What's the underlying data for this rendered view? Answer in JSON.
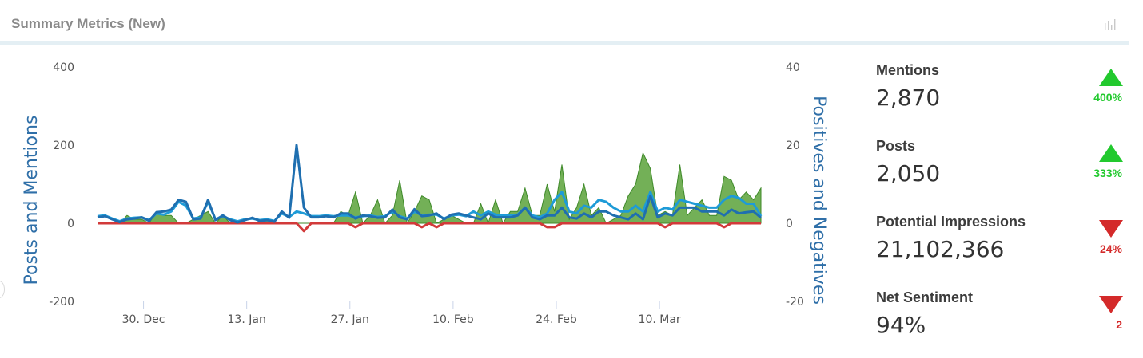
{
  "widget": {
    "title": "Summary Metrics (New)",
    "icon": "bar-chart-icon"
  },
  "metrics": [
    {
      "label": "Mentions",
      "value": "2,870",
      "change": "400%",
      "direction": "up"
    },
    {
      "label": "Posts",
      "value": "2,050",
      "change": "333%",
      "direction": "up"
    },
    {
      "label": "Potential Impressions",
      "value": "21,102,366",
      "change": "24%",
      "direction": "down"
    },
    {
      "label": "Net Sentiment",
      "value": "94%",
      "change": "2",
      "direction": "down"
    }
  ],
  "colors": {
    "mentions": "#1f6fb0",
    "posts": "#1e9bd7",
    "positives": "#5aa23a",
    "negatives": "#d23a3a",
    "axis_title": "#2f6fa8",
    "up": "#22c92e",
    "down": "#d42a2a"
  },
  "chart_data": {
    "type": "line",
    "ylabel": "Posts and Mentions",
    "y2label": "Positives and Negatives",
    "ylim": [
      -200,
      400
    ],
    "y2lim": [
      -20,
      40
    ],
    "yticks": [
      -200,
      0,
      200,
      400
    ],
    "y2ticks": [
      -20,
      0,
      20,
      40
    ],
    "xtick_labels": [
      "30. Dec",
      "13. Jan",
      "27. Jan",
      "10. Feb",
      "24. Feb",
      "10. Mar"
    ],
    "xtick_positions": [
      7,
      21,
      35,
      49,
      63,
      77
    ],
    "num_points": 91,
    "grid": false,
    "series": [
      {
        "axis": "left",
        "values": [
          15,
          18,
          10,
          3,
          10,
          12,
          15,
          6,
          28,
          30,
          35,
          60,
          55,
          10,
          12,
          60,
          8,
          20,
          8,
          2,
          8,
          14,
          6,
          8,
          4,
          30,
          14,
          200,
          40,
          15,
          15,
          18,
          15,
          25,
          25,
          12,
          20,
          18,
          14,
          15,
          35,
          15,
          10,
          36,
          18,
          20,
          25,
          10,
          22,
          25,
          20,
          15,
          10,
          25,
          15,
          15,
          15,
          20,
          40,
          15,
          10,
          20,
          20,
          40,
          15,
          12,
          25,
          15,
          30,
          30,
          20,
          15,
          10,
          25,
          10,
          70,
          15,
          25,
          20,
          40,
          40,
          40,
          30,
          30,
          30,
          20,
          35,
          25,
          28,
          30,
          14
        ]
      },
      {
        "axis": "left",
        "values": [
          18,
          20,
          12,
          5,
          12,
          14,
          15,
          8,
          25,
          22,
          30,
          55,
          45,
          12,
          15,
          55,
          10,
          18,
          10,
          5,
          10,
          12,
          8,
          10,
          6,
          25,
          16,
          30,
          25,
          18,
          18,
          20,
          18,
          20,
          20,
          15,
          18,
          20,
          16,
          18,
          30,
          18,
          12,
          30,
          20,
          22,
          22,
          12,
          20,
          22,
          18,
          30,
          20,
          30,
          22,
          20,
          20,
          22,
          40,
          20,
          15,
          25,
          60,
          80,
          30,
          25,
          45,
          40,
          60,
          55,
          40,
          30,
          30,
          45,
          30,
          80,
          30,
          40,
          35,
          60,
          55,
          50,
          45,
          40,
          40,
          60,
          70,
          65,
          50,
          50,
          18
        ]
      },
      {
        "axis": "right",
        "values": [
          0,
          0,
          0,
          0,
          2,
          1,
          1,
          0,
          3,
          2,
          2,
          0,
          0,
          1,
          2,
          3,
          0,
          2,
          0,
          0,
          0,
          0,
          0,
          1,
          0,
          0,
          0,
          0,
          0,
          0,
          0,
          0,
          0,
          3,
          2,
          8,
          0,
          2,
          6,
          0,
          2,
          11,
          0,
          3,
          7,
          6,
          0,
          1,
          2,
          1,
          0,
          0,
          5,
          0,
          6,
          0,
          3,
          3,
          9,
          2,
          2,
          10,
          3,
          15,
          1,
          4,
          10,
          2,
          4,
          0,
          1,
          2,
          7,
          10,
          18,
          14,
          2,
          3,
          2,
          15,
          2,
          4,
          6,
          2,
          2,
          12,
          11,
          6,
          8,
          6,
          9
        ]
      },
      {
        "axis": "right",
        "values": [
          0,
          0,
          0,
          0,
          0,
          0,
          0,
          0,
          0,
          0,
          0,
          0,
          0,
          0,
          0,
          0,
          0,
          0,
          0,
          0,
          0,
          0,
          0,
          0,
          0,
          0,
          0,
          0,
          -2,
          0,
          0,
          0,
          0,
          0,
          0,
          -1,
          0,
          0,
          0,
          0,
          0,
          0,
          0,
          0,
          -1,
          0,
          -1,
          0,
          0,
          0,
          0,
          0,
          0,
          0,
          0,
          0,
          0,
          0,
          0,
          0,
          0,
          -1,
          -1,
          0,
          0,
          0,
          0,
          0,
          0,
          0,
          0,
          0,
          0,
          0,
          0,
          0,
          0,
          -1,
          0,
          0,
          0,
          0,
          0,
          0,
          0,
          -1,
          0,
          0,
          0,
          0,
          0
        ]
      }
    ]
  }
}
